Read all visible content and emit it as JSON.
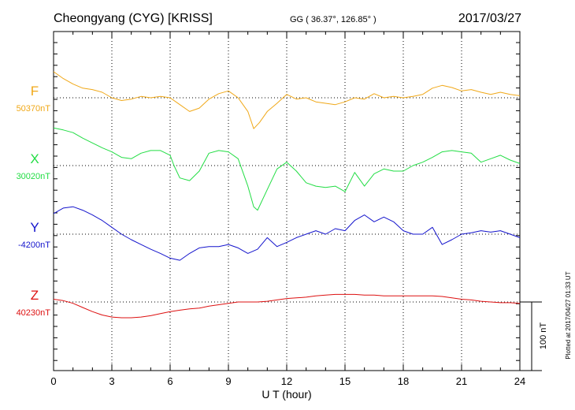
{
  "header": {
    "station": "Cheongyang (CYG)  [KRISS]",
    "coords": "GG ( 36.37°, 126.85° )",
    "date": "2017/03/27"
  },
  "side_note": "Plotted at 2017/04/27 01:33 UT",
  "scale_bar": {
    "label": "100 nT",
    "value_nT": 100
  },
  "chart_data": {
    "type": "line",
    "xlabel": "U T (hour)",
    "xlim": [
      0,
      24
    ],
    "xticks": [
      "0",
      "3",
      "6",
      "9",
      "12",
      "15",
      "18",
      "21",
      "24"
    ],
    "grid": true,
    "series": [
      {
        "name": "F",
        "baseline_label": "50370nT",
        "color": "#f0a818",
        "x": [
          0,
          0.5,
          1,
          1.5,
          2,
          2.5,
          3,
          3.5,
          4,
          4.5,
          5,
          5.5,
          6,
          6.5,
          7,
          7.5,
          8,
          8.5,
          9,
          9.5,
          10,
          10.3,
          10.6,
          11,
          11.5,
          12,
          12.5,
          13,
          13.5,
          14,
          14.5,
          15,
          15.5,
          16,
          16.5,
          17,
          17.5,
          18,
          18.5,
          19,
          19.5,
          20,
          20.5,
          21,
          21.5,
          22,
          22.5,
          23,
          23.5,
          24
        ],
        "y": [
          38,
          28,
          20,
          14,
          12,
          8,
          0,
          -4,
          -2,
          2,
          0,
          2,
          0,
          -10,
          -20,
          -15,
          -2,
          6,
          10,
          0,
          -20,
          -45,
          -36,
          -20,
          -8,
          5,
          -2,
          0,
          -6,
          -8,
          -10,
          -6,
          0,
          -2,
          6,
          0,
          2,
          0,
          2,
          5,
          14,
          18,
          15,
          10,
          12,
          8,
          5,
          8,
          5,
          3
        ]
      },
      {
        "name": "X",
        "baseline_label": "30020nT",
        "color": "#22dd44",
        "x": [
          0,
          0.5,
          1,
          1.5,
          2,
          2.5,
          3,
          3.5,
          4,
          4.5,
          5,
          5.5,
          6,
          6.2,
          6.5,
          7,
          7.5,
          8,
          8.5,
          9,
          9.5,
          10,
          10.3,
          10.5,
          11,
          11.5,
          12,
          12.5,
          13,
          13.5,
          14,
          14.5,
          15,
          15.5,
          16,
          16.5,
          17,
          17.5,
          18,
          18.5,
          19,
          19.5,
          20,
          20.5,
          21,
          21.5,
          22,
          22.5,
          23,
          23.5,
          24
        ],
        "y": [
          55,
          52,
          48,
          40,
          33,
          26,
          20,
          12,
          10,
          18,
          22,
          22,
          15,
          0,
          -18,
          -22,
          -8,
          18,
          22,
          20,
          10,
          -30,
          -60,
          -65,
          -35,
          -5,
          5,
          -8,
          -25,
          -30,
          -32,
          -30,
          -38,
          -10,
          -30,
          -12,
          -5,
          -8,
          -8,
          0,
          5,
          12,
          20,
          22,
          20,
          18,
          5,
          10,
          15,
          8,
          3
        ]
      },
      {
        "name": "Y",
        "baseline_label": "-4200nT",
        "color": "#1414cc",
        "x": [
          0,
          0.5,
          1,
          1.5,
          2,
          2.5,
          3,
          3.5,
          4,
          4.5,
          5,
          5.5,
          6,
          6.5,
          7,
          7.5,
          8,
          8.5,
          9,
          9.5,
          10,
          10.5,
          11,
          11.5,
          12,
          12.5,
          13,
          13.5,
          14,
          14.5,
          15,
          15.5,
          16,
          16.5,
          17,
          17.5,
          18,
          18.5,
          19,
          19.5,
          20,
          20.5,
          21,
          21.5,
          22,
          22.5,
          23,
          23.5,
          24
        ],
        "y": [
          30,
          38,
          40,
          35,
          28,
          20,
          10,
          0,
          -8,
          -15,
          -22,
          -28,
          -35,
          -38,
          -28,
          -20,
          -18,
          -18,
          -15,
          -20,
          -28,
          -22,
          -5,
          -18,
          -12,
          -5,
          0,
          5,
          0,
          8,
          5,
          20,
          28,
          18,
          25,
          18,
          5,
          0,
          0,
          10,
          -15,
          -8,
          0,
          2,
          5,
          3,
          5,
          0,
          -5
        ]
      },
      {
        "name": "Z",
        "baseline_label": "40230nT",
        "color": "#dd1111",
        "x": [
          0,
          0.5,
          1,
          1.5,
          2,
          2.5,
          3,
          3.5,
          4,
          4.5,
          5,
          5.5,
          6,
          6.5,
          7,
          7.5,
          8,
          8.5,
          9,
          9.5,
          10,
          10.5,
          11,
          11.5,
          12,
          12.5,
          13,
          13.5,
          14,
          14.5,
          15,
          15.5,
          16,
          16.5,
          17,
          17.5,
          18,
          18.5,
          19,
          19.5,
          20,
          20.5,
          21,
          21.5,
          22,
          22.5,
          23,
          23.5,
          24
        ],
        "y": [
          4,
          2,
          -2,
          -8,
          -14,
          -19,
          -22,
          -23,
          -23,
          -22,
          -20,
          -17,
          -14,
          -12,
          -10,
          -9,
          -6,
          -4,
          -2,
          0,
          0,
          0,
          1,
          3,
          5,
          6,
          7,
          9,
          10,
          11,
          11,
          11,
          10,
          10,
          9,
          9,
          9,
          9,
          9,
          9,
          8,
          6,
          4,
          3,
          1,
          0,
          -1,
          -1,
          -2
        ]
      }
    ]
  }
}
